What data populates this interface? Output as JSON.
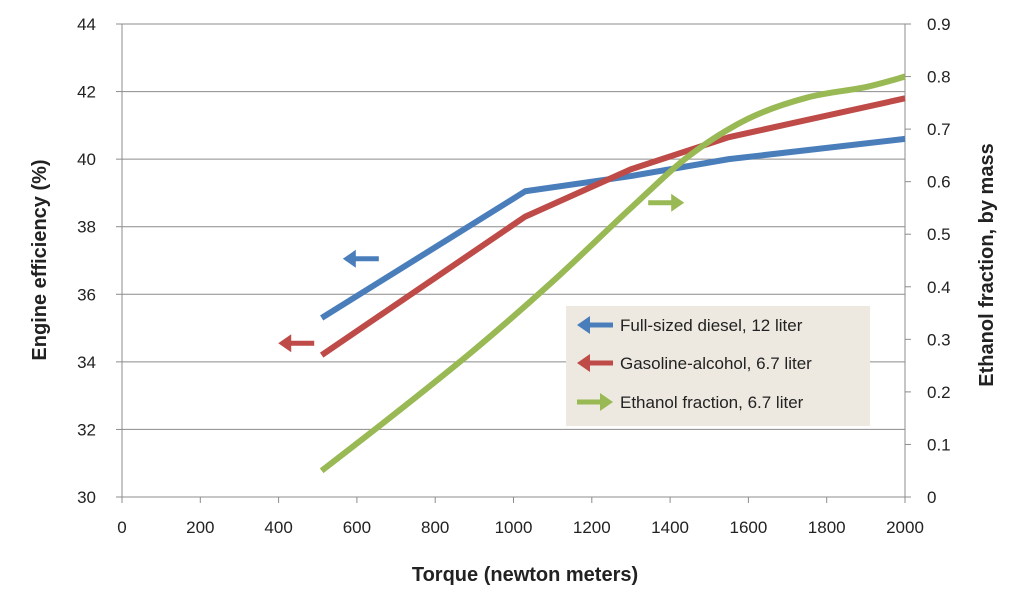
{
  "chart_data": {
    "type": "line",
    "title": "",
    "xlabel": "Torque (newton meters)",
    "ylabel_left": "Engine efficiency (%)",
    "ylabel_right": "Ethanol fraction, by mass",
    "xlim": [
      0,
      2000
    ],
    "ylim_left": [
      30,
      44
    ],
    "ylim_right": [
      0,
      0.9
    ],
    "x_ticks": [
      "0",
      "200",
      "400",
      "600",
      "800",
      "1000",
      "1200",
      "1400",
      "1600",
      "1800",
      "2000"
    ],
    "y_ticks_left": [
      "30",
      "32",
      "34",
      "36",
      "38",
      "40",
      "42",
      "44"
    ],
    "y_ticks_right": [
      "0",
      "0.1",
      "0.2",
      "0.3",
      "0.4",
      "0.5",
      "0.6",
      "0.7",
      "0.8",
      "0.9"
    ],
    "grid": true,
    "legend_placement": "center-right",
    "series": [
      {
        "name": "Full-sized diesel, 12 liter",
        "axis": "left",
        "color": "#4a7ebb",
        "x": [
          510,
          1030,
          1300,
          1550,
          2000
        ],
        "y": [
          35.3,
          39.05,
          39.5,
          40.0,
          40.6
        ]
      },
      {
        "name": "Gasoline-alcohol, 6.7 liter",
        "axis": "left",
        "color": "#be4b48",
        "x": [
          510,
          1030,
          1300,
          1550,
          2000
        ],
        "y": [
          34.2,
          38.3,
          39.7,
          40.65,
          41.8
        ]
      },
      {
        "name": "Ethanol fraction, 6.7 liter",
        "axis": "right",
        "color": "#98b954",
        "x": [
          510,
          700,
          900,
          1100,
          1300,
          1450,
          1600,
          1750,
          1900,
          2000
        ],
        "y": [
          0.05,
          0.16,
          0.28,
          0.41,
          0.55,
          0.65,
          0.72,
          0.76,
          0.78,
          0.8
        ]
      }
    ],
    "annotations": [
      {
        "type": "arrow",
        "direction": "left",
        "series": "Full-sized diesel, 12 liter",
        "x": 610,
        "y": 37.05,
        "axis": "left"
      },
      {
        "type": "arrow",
        "direction": "left",
        "series": "Gasoline-alcohol, 6.7 liter",
        "x": 445,
        "y": 34.55,
        "axis": "left"
      },
      {
        "type": "arrow",
        "direction": "right",
        "series": "Ethanol fraction, 6.7 liter",
        "x": 1390,
        "y": 0.56,
        "axis": "right"
      }
    ]
  }
}
